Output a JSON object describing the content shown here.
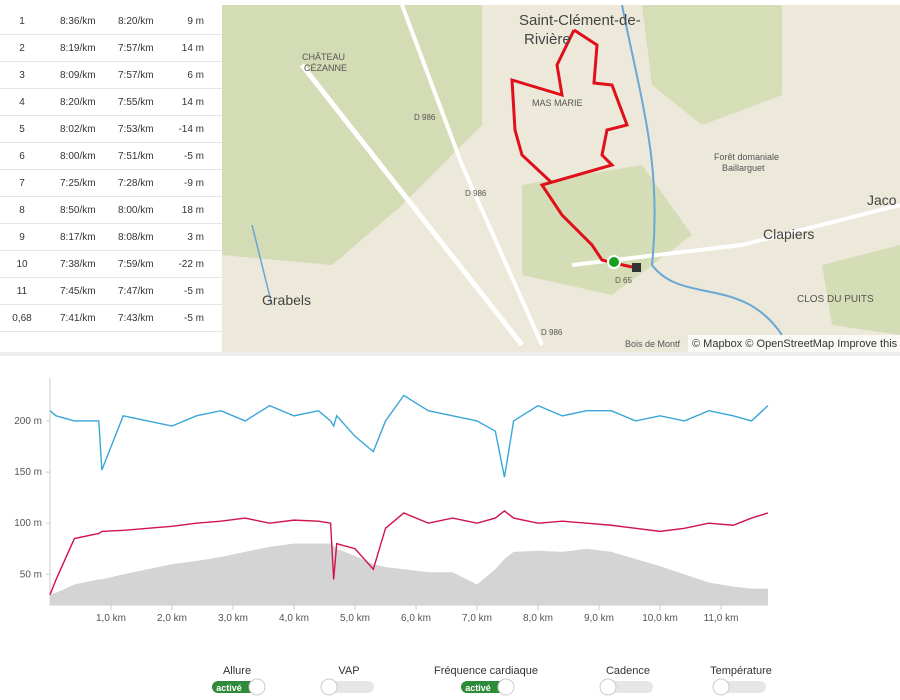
{
  "splits": {
    "rows": [
      [
        "1",
        "8:36/km",
        "8:20/km",
        "9 m"
      ],
      [
        "2",
        "8:19/km",
        "7:57/km",
        "14 m"
      ],
      [
        "3",
        "8:09/km",
        "7:57/km",
        "6 m"
      ],
      [
        "4",
        "8:20/km",
        "7:55/km",
        "14 m"
      ],
      [
        "5",
        "8:02/km",
        "7:53/km",
        "-14 m"
      ],
      [
        "6",
        "8:00/km",
        "7:51/km",
        "-5 m"
      ],
      [
        "7",
        "7:25/km",
        "7:28/km",
        "-9 m"
      ],
      [
        "8",
        "8:50/km",
        "8:00/km",
        "18 m"
      ],
      [
        "9",
        "8:17/km",
        "8:08/km",
        "3 m"
      ],
      [
        "10",
        "7:38/km",
        "7:59/km",
        "-22 m"
      ],
      [
        "11",
        "7:45/km",
        "7:47/km",
        "-5 m"
      ],
      [
        "0,68",
        "7:41/km",
        "7:43/km",
        "-5 m"
      ]
    ]
  },
  "map": {
    "labels": [
      "Saint-Clément-de-",
      "Rivière",
      "CHÂTEAU",
      "CÉZANNE",
      "MAS MARIE",
      "D 986",
      "D 986",
      "D 986",
      "Forêt domaniale",
      "Baillarguet",
      "Jaco",
      "Clapiers",
      "Grabels",
      "D 65",
      "CLOS DU PUITS",
      "Bois de Montf"
    ],
    "attribution": "© Mapbox © OpenStreetMap Improve this"
  },
  "chart_data": {
    "type": "line",
    "x": [
      0,
      0.1,
      0.4,
      0.8,
      0.85,
      1.2,
      1.6,
      2.0,
      2.4,
      2.8,
      3.2,
      3.6,
      4.0,
      4.4,
      4.6,
      4.65,
      4.7,
      5.0,
      5.3,
      5.5,
      5.8,
      6.2,
      6.6,
      7.0,
      7.3,
      7.45,
      7.6,
      8.0,
      8.4,
      8.8,
      9.2,
      9.6,
      10.0,
      10.4,
      10.8,
      11.2,
      11.5,
      11.77
    ],
    "series": [
      {
        "color": "#d4d4d4",
        "style": "area",
        "values": [
          30,
          32,
          40,
          45,
          45,
          50,
          55,
          60,
          63,
          67,
          72,
          77,
          80,
          80,
          80,
          78,
          75,
          68,
          60,
          57,
          55,
          52,
          52,
          40,
          55,
          65,
          72,
          73,
          72,
          75,
          72,
          65,
          58,
          50,
          42,
          38,
          36,
          36
        ]
      },
      {
        "color": "#3aa6d8",
        "style": "line",
        "values": [
          210,
          205,
          200,
          200,
          152,
          205,
          200,
          195,
          205,
          210,
          200,
          215,
          205,
          210,
          200,
          195,
          205,
          185,
          170,
          200,
          225,
          210,
          205,
          200,
          190,
          145,
          200,
          215,
          205,
          210,
          210,
          200,
          205,
          200,
          210,
          205,
          200,
          215
        ]
      },
      {
        "color": "#d0144a",
        "style": "line",
        "values": [
          30,
          45,
          85,
          90,
          92,
          93,
          95,
          97,
          100,
          102,
          105,
          100,
          103,
          102,
          100,
          45,
          80,
          75,
          55,
          95,
          110,
          100,
          105,
          100,
          105,
          112,
          105,
          100,
          102,
          100,
          98,
          95,
          92,
          95,
          100,
          98,
          105,
          110
        ]
      }
    ],
    "xlim": [
      0,
      11.77
    ],
    "ylim": [
      20,
      242
    ],
    "xticks": [
      {
        "value": 1,
        "label": "1,0 km"
      },
      {
        "value": 2,
        "label": "2,0 km"
      },
      {
        "value": 3,
        "label": "3,0 km"
      },
      {
        "value": 4,
        "label": "4,0 km"
      },
      {
        "value": 5,
        "label": "5,0 km"
      },
      {
        "value": 6,
        "label": "6,0 km"
      },
      {
        "value": 7,
        "label": "7,0 km"
      },
      {
        "value": 8,
        "label": "8,0 km"
      },
      {
        "value": 9,
        "label": "9,0 km"
      },
      {
        "value": 10,
        "label": "10,0 km"
      },
      {
        "value": 11,
        "label": "11,0 km"
      }
    ],
    "yticks": [
      {
        "value": 50,
        "label": "50 m"
      },
      {
        "value": 100,
        "label": "100 m"
      },
      {
        "value": 150,
        "label": "150 m"
      },
      {
        "value": 200,
        "label": "200 m"
      }
    ]
  },
  "toggles": [
    {
      "label": "Allure",
      "state": "activé"
    },
    {
      "label": "VAP"
    },
    {
      "label": "Fréquence cardiaque",
      "state": "activé"
    },
    {
      "label": "Cadence"
    },
    {
      "label": "Température"
    }
  ]
}
